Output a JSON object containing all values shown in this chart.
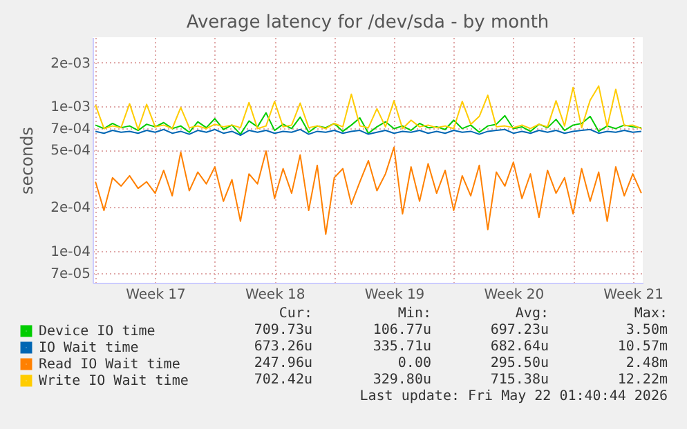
{
  "chart_data": {
    "type": "line",
    "title": "Average latency for /dev/sda - by month",
    "ylabel": "seconds",
    "log": true,
    "grid": true,
    "legend": "bottom",
    "line_style": "solid",
    "xlim": [
      "2026-04-19T20:00",
      "2026-05-22T02:00"
    ],
    "xticks": [
      {
        "value": "2026-04-20T00:00",
        "label": null
      },
      {
        "value": "2026-04-23T12:00",
        "label": "Week 17"
      },
      {
        "value": "2026-04-27T00:00",
        "label": null
      },
      {
        "value": "2026-04-30T12:00",
        "label": "Week 18"
      },
      {
        "value": "2026-05-04T00:00",
        "label": null
      },
      {
        "value": "2026-05-07T12:00",
        "label": "Week 19"
      },
      {
        "value": "2026-05-11T00:00",
        "label": null
      },
      {
        "value": "2026-05-14T12:00",
        "label": "Week 20"
      },
      {
        "value": "2026-05-18T00:00",
        "label": null
      },
      {
        "value": "2026-05-21T12:00",
        "label": "Week 21"
      }
    ],
    "ylim": [
      6e-05,
      0.003
    ],
    "yticks": [
      {
        "value": 7e-05,
        "label": "7e-05"
      },
      {
        "value": 0.0001,
        "label": "1e-04"
      },
      {
        "value": 0.0002,
        "label": "2e-04"
      },
      {
        "value": 0.0005,
        "label": "5e-04"
      },
      {
        "value": 0.0007,
        "label": "7e-04"
      },
      {
        "value": 0.001,
        "label": "1e-03"
      },
      {
        "value": 0.002,
        "label": "2e-03"
      }
    ],
    "x": [
      "2026-04-20T00:00",
      "2026-04-20T12:00",
      "2026-04-21T00:00",
      "2026-04-21T12:00",
      "2026-04-22T00:00",
      "2026-04-22T12:00",
      "2026-04-23T00:00",
      "2026-04-23T12:00",
      "2026-04-24T00:00",
      "2026-04-24T12:00",
      "2026-04-25T00:00",
      "2026-04-25T12:00",
      "2026-04-26T00:00",
      "2026-04-26T12:00",
      "2026-04-27T00:00",
      "2026-04-27T12:00",
      "2026-04-28T00:00",
      "2026-04-28T12:00",
      "2026-04-29T00:00",
      "2026-04-29T12:00",
      "2026-04-30T00:00",
      "2026-04-30T12:00",
      "2026-05-01T00:00",
      "2026-05-01T12:00",
      "2026-05-02T00:00",
      "2026-05-02T12:00",
      "2026-05-03T00:00",
      "2026-05-03T12:00",
      "2026-05-04T00:00",
      "2026-05-04T12:00",
      "2026-05-05T00:00",
      "2026-05-05T12:00",
      "2026-05-06T00:00",
      "2026-05-06T12:00",
      "2026-05-07T00:00",
      "2026-05-07T12:00",
      "2026-05-08T00:00",
      "2026-05-08T12:00",
      "2026-05-09T00:00",
      "2026-05-09T12:00",
      "2026-05-10T00:00",
      "2026-05-10T12:00",
      "2026-05-11T00:00",
      "2026-05-11T12:00",
      "2026-05-12T00:00",
      "2026-05-12T12:00",
      "2026-05-13T00:00",
      "2026-05-13T12:00",
      "2026-05-14T00:00",
      "2026-05-14T12:00",
      "2026-05-15T00:00",
      "2026-05-15T12:00",
      "2026-05-16T00:00",
      "2026-05-16T12:00",
      "2026-05-17T00:00",
      "2026-05-17T12:00",
      "2026-05-18T00:00",
      "2026-05-18T12:00",
      "2026-05-19T00:00",
      "2026-05-19T12:00",
      "2026-05-20T00:00",
      "2026-05-20T12:00",
      "2026-05-21T00:00",
      "2026-05-21T12:00",
      "2026-05-22T00:00"
    ],
    "series": [
      {
        "name": "Device IO time",
        "color": "#00cc00",
        "values": [
          0.00074,
          0.0007,
          0.00076,
          0.00071,
          0.00073,
          0.00068,
          0.00075,
          0.00072,
          0.00077,
          0.0007,
          0.00073,
          0.00066,
          0.00078,
          0.00071,
          0.00082,
          0.00069,
          0.00074,
          0.00064,
          0.00079,
          0.00072,
          0.0009,
          0.00068,
          0.00075,
          0.0007,
          0.00084,
          0.00066,
          0.00073,
          0.00071,
          0.00076,
          0.00067,
          0.00074,
          0.00083,
          0.00065,
          0.00072,
          0.00078,
          0.0007,
          0.00073,
          0.00068,
          0.00076,
          0.00071,
          0.00072,
          0.00069,
          0.0008,
          0.0007,
          0.00074,
          0.00066,
          0.00073,
          0.00075,
          0.00086,
          0.0007,
          0.00072,
          0.00067,
          0.00075,
          0.00071,
          0.00081,
          0.00068,
          0.00074,
          0.00076,
          0.00085,
          0.00067,
          0.00073,
          0.0007,
          0.00074,
          0.00072,
          0.00071
        ]
      },
      {
        "name": "IO Wait time",
        "color": "#0066b3",
        "values": [
          0.00067,
          0.00065,
          0.00068,
          0.00066,
          0.00067,
          0.00065,
          0.00068,
          0.00066,
          0.00069,
          0.00065,
          0.00067,
          0.00064,
          0.00068,
          0.00066,
          0.00069,
          0.00065,
          0.00067,
          0.00063,
          0.00068,
          0.00066,
          0.00068,
          0.00065,
          0.00067,
          0.00066,
          0.00069,
          0.00064,
          0.00067,
          0.00066,
          0.00068,
          0.00065,
          0.00067,
          0.00068,
          0.00064,
          0.00066,
          0.00068,
          0.00065,
          0.00067,
          0.00066,
          0.00068,
          0.00065,
          0.00067,
          0.00065,
          0.00068,
          0.00066,
          0.00067,
          0.00064,
          0.00067,
          0.00068,
          0.00069,
          0.00065,
          0.00067,
          0.00065,
          0.00068,
          0.00066,
          0.00068,
          0.00065,
          0.00067,
          0.00068,
          0.00069,
          0.00065,
          0.00067,
          0.00066,
          0.00068,
          0.00066,
          0.00067
        ]
      },
      {
        "name": "Read IO Wait time",
        "color": "#ff8000",
        "values": [
          0.0003,
          0.00019,
          0.00032,
          0.00028,
          0.00033,
          0.00027,
          0.0003,
          0.00025,
          0.00036,
          0.00024,
          0.00048,
          0.00026,
          0.00035,
          0.00029,
          0.00038,
          0.00022,
          0.00031,
          0.00016,
          0.00034,
          0.00029,
          0.00049,
          0.00023,
          0.00037,
          0.00025,
          0.00046,
          0.00019,
          0.00039,
          0.00013,
          0.00032,
          0.00037,
          0.00021,
          0.0003,
          0.00042,
          0.00026,
          0.00034,
          0.00052,
          0.00018,
          0.00038,
          0.00022,
          0.0004,
          0.00025,
          0.00036,
          0.00019,
          0.00033,
          0.00024,
          0.00039,
          0.00014,
          0.00035,
          0.00028,
          0.00041,
          0.00023,
          0.00034,
          0.00017,
          0.00036,
          0.00025,
          0.00032,
          0.00018,
          0.00037,
          0.00022,
          0.00035,
          0.00016,
          0.00038,
          0.00024,
          0.00034,
          0.00025
        ]
      },
      {
        "name": "Write IO Wait time",
        "color": "#ffcc00",
        "values": [
          0.00102,
          0.0007,
          0.00073,
          0.00071,
          0.00104,
          0.00069,
          0.00103,
          0.00072,
          0.00074,
          0.0007,
          0.00098,
          0.00071,
          0.00073,
          0.0007,
          0.00075,
          0.00072,
          0.00074,
          0.00071,
          0.00106,
          0.0007,
          0.00073,
          0.00108,
          0.00072,
          0.00074,
          0.00105,
          0.00071,
          0.00073,
          0.0007,
          0.00076,
          0.00072,
          0.00121,
          0.00073,
          0.00071,
          0.00096,
          0.00072,
          0.00109,
          0.0007,
          0.0008,
          0.00072,
          0.00074,
          0.00071,
          0.00073,
          0.0007,
          0.00108,
          0.00075,
          0.00085,
          0.00119,
          0.00072,
          0.00073,
          0.00071,
          0.00074,
          0.0007,
          0.00075,
          0.00072,
          0.00109,
          0.00073,
          0.00135,
          0.00071,
          0.0011,
          0.00138,
          0.00072,
          0.00131,
          0.00073,
          0.00074,
          0.0007
        ]
      }
    ],
    "annotations": [
      "Cur:",
      "Min:",
      "Avg:",
      "Max:",
      "709.73u",
      "106.77u",
      "697.23u",
      "3.50m",
      "673.26u",
      "335.71u",
      "682.64u",
      "10.57m",
      "247.96u",
      "0.00",
      "295.50u",
      "2.48m",
      "702.42u",
      "329.80u",
      "715.38u",
      "12.22m",
      "Last update: Fri May 22 01:40:44 2026"
    ]
  }
}
